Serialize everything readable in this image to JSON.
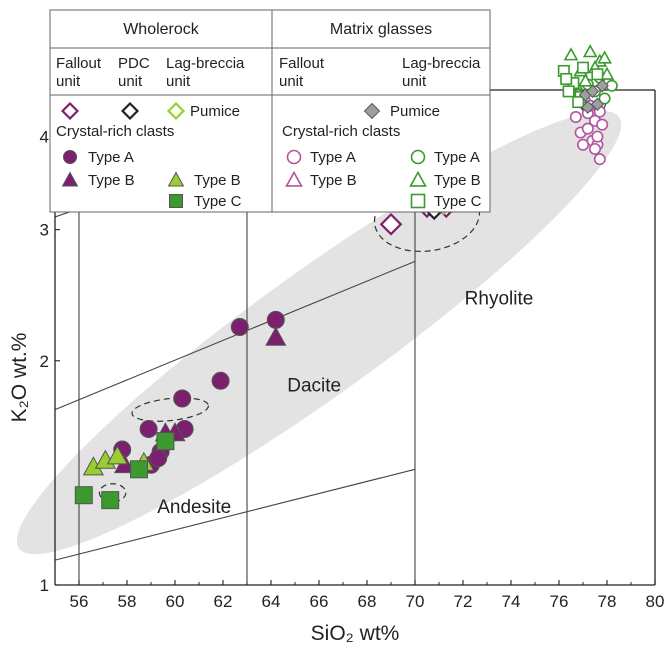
{
  "chart_data": {
    "type": "scatter",
    "xlabel": "SiO₂ wt%",
    "ylabel": "K₂O wt.%",
    "x_scale": "linear",
    "y_scale": "log",
    "xlim": [
      55,
      80
    ],
    "ylim": [
      1,
      5
    ],
    "x_ticks": [
      56,
      58,
      60,
      62,
      64,
      66,
      68,
      70,
      72,
      74,
      76,
      78,
      80
    ],
    "y_ticks": [
      1,
      2,
      3,
      4
    ],
    "grid": false,
    "region_labels": [
      {
        "text": "Andesite",
        "x": 60.8,
        "y": 1.25
      },
      {
        "text": "Dacite",
        "x": 65.8,
        "y": 1.82
      },
      {
        "text": "Rhyolite",
        "x": 73.5,
        "y": 2.38
      }
    ],
    "legend": {
      "placement": "top-left",
      "wholerock": {
        "title": "Wholerock",
        "units": [
          "Fallout unit",
          "PDC unit",
          "Lag-breccia unit"
        ],
        "pumice_label": "Pumice",
        "clasts_title": "Crystal-rich clasts",
        "entries": [
          {
            "label": "Type A",
            "marker": "circle",
            "filled": true,
            "color": "#7c1f6e"
          },
          {
            "label": "Type B",
            "marker": "triangle",
            "filled": true,
            "color": "#7c1f6e"
          },
          {
            "label": "Type B",
            "marker": "triangle",
            "filled": true,
            "color": "#9acd32"
          },
          {
            "label": "Type C",
            "marker": "square",
            "filled": true,
            "color": "#3a9a2e"
          }
        ]
      },
      "matrix": {
        "title": "Matrix glasses",
        "units": [
          "Fallout unit",
          "Lag-breccia unit"
        ],
        "pumice_label": "Pumice",
        "clasts_title": "Crystal-rich clasts",
        "entries": [
          {
            "label": "Type A",
            "marker": "circle",
            "filled": false,
            "color": "#b0559e"
          },
          {
            "label": "Type B",
            "marker": "triangle",
            "filled": false,
            "color": "#b0559e"
          },
          {
            "label": "Type A",
            "marker": "circle",
            "filled": false,
            "color": "#3a9a2e"
          },
          {
            "label": "Type B",
            "marker": "triangle",
            "filled": false,
            "color": "#3a9a2e"
          },
          {
            "label": "Type C",
            "marker": "square",
            "filled": false,
            "color": "#3a9a2e"
          }
        ]
      }
    },
    "colors": {
      "fallout": "#7c1f6e",
      "fallout_glass": "#b0559e",
      "pdc": "#222222",
      "lag": "#9acd32",
      "lag_dark": "#3a9a2e",
      "pumice_glass": "#9e9e9e",
      "field": "#e3e3e3"
    },
    "series": [
      {
        "name": "Fallout pumice",
        "marker": "diamond",
        "filled": false,
        "color": "#7c1f6e",
        "x": [
          69.0,
          70.5,
          71.3
        ],
        "y": [
          3.05,
          3.22,
          3.22
        ]
      },
      {
        "name": "PDC pumice",
        "marker": "diamond",
        "filled": false,
        "color": "#222222",
        "x": [
          70.8
        ],
        "y": [
          3.2
        ]
      },
      {
        "name": "Lag-breccia pumice",
        "marker": "diamond",
        "filled": false,
        "color": "#9acd32",
        "x": [
          71.1,
          71.2
        ],
        "y": [
          3.42,
          3.25
        ]
      },
      {
        "name": "Fallout Type A",
        "marker": "circle",
        "filled": true,
        "color": "#7c1f6e",
        "x": [
          57.8,
          58.9,
          59.0,
          59.4,
          60.3,
          60.4,
          61.9,
          62.7,
          64.2,
          59.3
        ],
        "y": [
          1.52,
          1.62,
          1.45,
          1.51,
          1.78,
          1.62,
          1.88,
          2.22,
          2.27,
          1.48
        ]
      },
      {
        "name": "Fallout Type B",
        "marker": "triangle",
        "filled": true,
        "color": "#7c1f6e",
        "x": [
          57.9,
          59.6,
          60.0,
          64.2
        ],
        "y": [
          1.45,
          1.6,
          1.6,
          2.15
        ]
      },
      {
        "name": "Lag-breccia Type B",
        "marker": "triangle",
        "filled": true,
        "color": "#9acd32",
        "x": [
          56.6,
          57.1,
          57.6,
          58.7
        ],
        "y": [
          1.44,
          1.47,
          1.49,
          1.46
        ]
      },
      {
        "name": "Lag-breccia Type C",
        "marker": "square",
        "filled": true,
        "color": "#3a9a2e",
        "x": [
          56.2,
          57.3,
          58.5,
          59.6
        ],
        "y": [
          1.32,
          1.3,
          1.43,
          1.56
        ]
      },
      {
        "name": "Glass Fallout Type A",
        "marker": "circle",
        "filled": false,
        "color": "#b0559e",
        "x": [
          76.7,
          76.9,
          77.0,
          77.1,
          77.2,
          77.4,
          77.5,
          77.6,
          77.7,
          77.8,
          77.2,
          77.6,
          77.3,
          77.5,
          77.7
        ],
        "y": [
          4.25,
          4.05,
          3.9,
          4.45,
          4.1,
          3.95,
          4.2,
          3.9,
          3.73,
          4.15,
          4.3,
          4.0,
          4.4,
          3.85,
          4.32
        ]
      },
      {
        "name": "Glass Lag-breccia Type A",
        "marker": "circle",
        "filled": false,
        "color": "#3a9a2e",
        "x": [
          76.8,
          77.2,
          77.5,
          77.9,
          78.2,
          77.7
        ],
        "y": [
          4.55,
          4.7,
          4.6,
          4.5,
          4.68,
          4.8
        ]
      },
      {
        "name": "Glass Lag-breccia Type B",
        "marker": "triangle",
        "filled": false,
        "color": "#3a9a2e",
        "x": [
          76.5,
          76.9,
          77.3,
          77.7,
          78.0,
          77.1,
          77.5,
          76.7,
          77.9
        ],
        "y": [
          5.15,
          4.9,
          5.2,
          5.05,
          4.85,
          4.75,
          4.95,
          4.7,
          5.1
        ]
      },
      {
        "name": "Glass Lag-breccia Type C",
        "marker": "square",
        "filled": false,
        "color": "#3a9a2e",
        "x": [
          76.2,
          76.6,
          77.0,
          76.4,
          76.9,
          77.6,
          76.3,
          76.8
        ],
        "y": [
          4.9,
          4.72,
          4.95,
          4.6,
          4.52,
          4.85,
          4.78,
          4.45
        ]
      },
      {
        "name": "Glass Pumice",
        "marker": "diamond",
        "filled": true,
        "color": "#9e9e9e",
        "x": [
          77.1,
          77.4,
          77.6,
          77.2,
          77.8
        ],
        "y": [
          4.55,
          4.6,
          4.42,
          4.38,
          4.68
        ]
      }
    ]
  }
}
